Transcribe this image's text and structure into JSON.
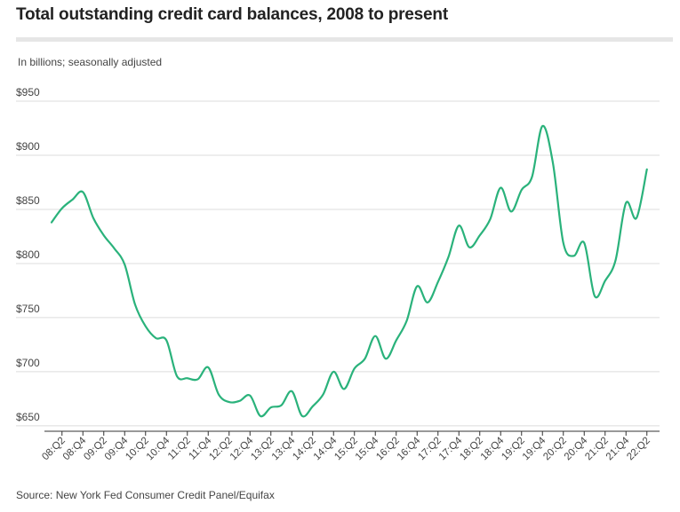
{
  "chart_data": {
    "type": "line",
    "title": "Total outstanding credit card balances, 2008 to present",
    "subtitle": "In billions; seasonally adjusted",
    "source": "Source: New York Fed Consumer Credit Panel/Equifax",
    "xlabel": "",
    "ylabel": "",
    "ylim": [
      645,
      950
    ],
    "yticks": [
      650,
      700,
      750,
      800,
      850,
      900,
      950
    ],
    "ytick_labels": [
      "$650",
      "$700",
      "$750",
      "$800",
      "$850",
      "$900",
      "$950"
    ],
    "xtick_labels": [
      "08:Q2",
      "08:Q4",
      "09:Q2",
      "09:Q4",
      "10:Q2",
      "10:Q4",
      "11:Q2",
      "11:Q4",
      "12:Q2",
      "12:Q4",
      "13:Q2",
      "13:Q4",
      "14:Q2",
      "14:Q4",
      "15:Q2",
      "15:Q4",
      "16:Q2",
      "16:Q4",
      "17:Q2",
      "17:Q4",
      "18:Q2",
      "18:Q4",
      "19:Q2",
      "19:Q4",
      "20:Q2",
      "20:Q4",
      "21:Q2",
      "21:Q4",
      "22:Q2"
    ],
    "line_color": "#2ab27b",
    "grid": true,
    "series": [
      {
        "name": "Credit card balances",
        "x": [
          "08:Q1",
          "08:Q2",
          "08:Q3",
          "08:Q4",
          "09:Q1",
          "09:Q2",
          "09:Q3",
          "09:Q4",
          "10:Q1",
          "10:Q2",
          "10:Q3",
          "10:Q4",
          "11:Q1",
          "11:Q2",
          "11:Q3",
          "11:Q4",
          "12:Q1",
          "12:Q2",
          "12:Q3",
          "12:Q4",
          "13:Q1",
          "13:Q2",
          "13:Q3",
          "13:Q4",
          "14:Q1",
          "14:Q2",
          "14:Q3",
          "14:Q4",
          "15:Q1",
          "15:Q2",
          "15:Q3",
          "15:Q4",
          "16:Q1",
          "16:Q2",
          "16:Q3",
          "16:Q4",
          "17:Q1",
          "17:Q2",
          "17:Q3",
          "17:Q4",
          "18:Q1",
          "18:Q2",
          "18:Q3",
          "18:Q4",
          "19:Q1",
          "19:Q2",
          "19:Q3",
          "19:Q4",
          "20:Q1",
          "20:Q2",
          "20:Q3",
          "20:Q4",
          "21:Q1",
          "21:Q2",
          "21:Q3",
          "21:Q4",
          "22:Q1",
          "22:Q2"
        ],
        "values": [
          838,
          851,
          859,
          866,
          842,
          826,
          814,
          799,
          762,
          742,
          731,
          729,
          696,
          694,
          693,
          704,
          679,
          672,
          673,
          678,
          659,
          667,
          669,
          682,
          659,
          668,
          679,
          700,
          684,
          703,
          712,
          733,
          712,
          729,
          747,
          779,
          764,
          783,
          806,
          835,
          815,
          826,
          841,
          870,
          848,
          868,
          880,
          927,
          893,
          819,
          807,
          819,
          770,
          784,
          803,
          856,
          842,
          887
        ]
      }
    ]
  }
}
